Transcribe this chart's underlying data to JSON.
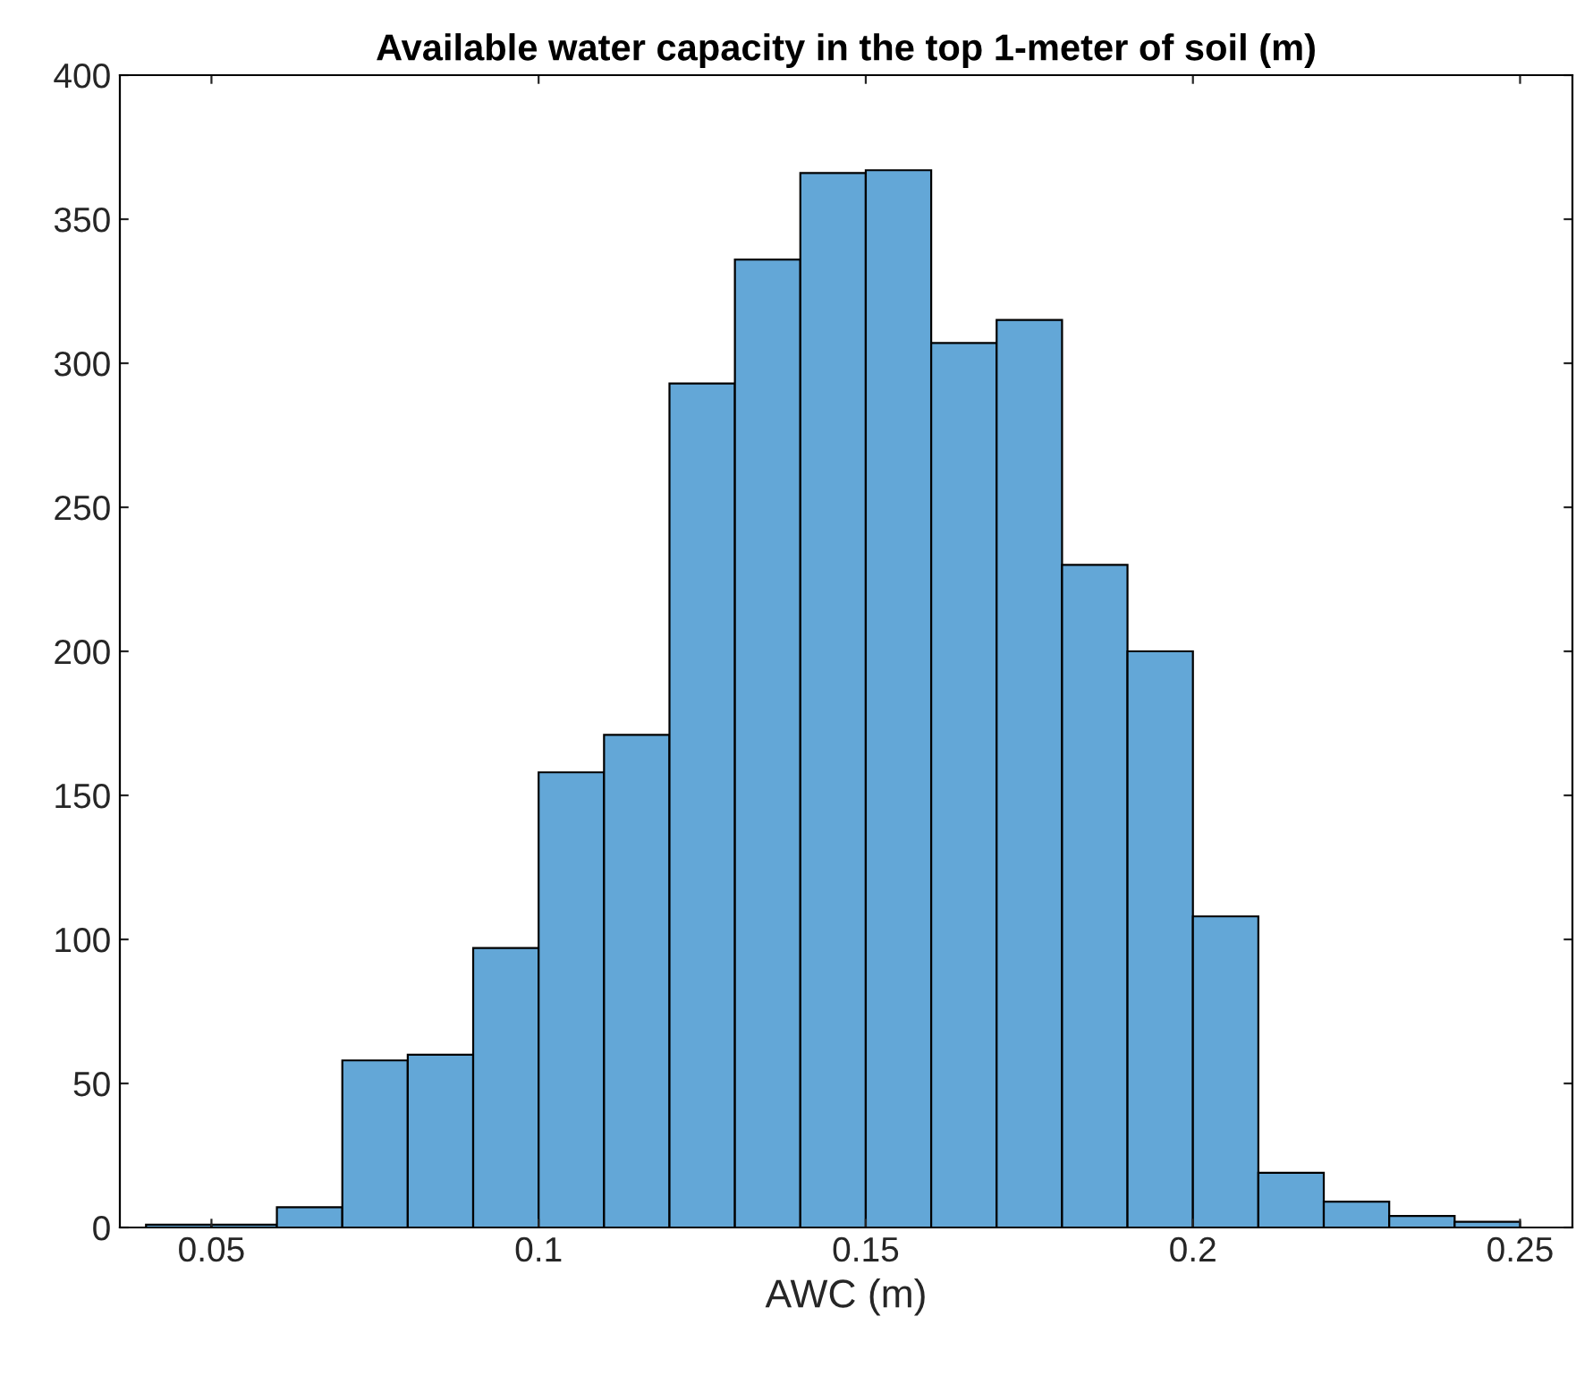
{
  "chart_data": {
    "type": "histogram",
    "title": "Available water capacity in the top 1-meter of soil (m)",
    "xlabel": "AWC (m)",
    "bins": [
      0.04,
      0.05,
      0.06,
      0.07,
      0.08,
      0.09,
      0.1,
      0.11,
      0.12,
      0.13,
      0.14,
      0.15,
      0.16,
      0.17,
      0.18,
      0.19,
      0.2,
      0.21,
      0.22,
      0.23,
      0.24,
      0.25
    ],
    "values": [
      1,
      1,
      7,
      58,
      60,
      97,
      158,
      171,
      293,
      336,
      366,
      367,
      307,
      315,
      230,
      200,
      108,
      19,
      9,
      4,
      2
    ],
    "color": "#63a7d7",
    "xlim": [
      0.036,
      0.258
    ],
    "xticks": [
      {
        "value": 0.05,
        "label": "0.05"
      },
      {
        "value": 0.1,
        "label": "0.1"
      },
      {
        "value": 0.15,
        "label": "0.15"
      },
      {
        "value": 0.2,
        "label": "0.2"
      },
      {
        "value": 0.25,
        "label": "0.25"
      }
    ],
    "ylim": [
      0,
      400
    ],
    "yticks": [
      0,
      50,
      100,
      150,
      200,
      250,
      300,
      350,
      400
    ],
    "grid": false,
    "legend": false
  }
}
